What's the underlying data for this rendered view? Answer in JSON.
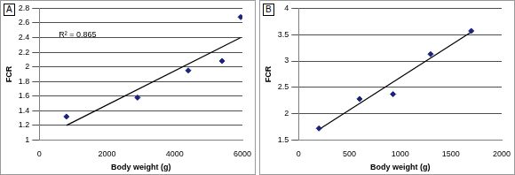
{
  "chart_data": [
    {
      "type": "scatter",
      "title": "A",
      "xlabel": "Body weight (g)",
      "ylabel": "FCR",
      "annotation": "R² = 0.865",
      "xlim": [
        0,
        6000
      ],
      "xticks": [
        0,
        2000,
        4000,
        6000
      ],
      "ylim": [
        1,
        2.8
      ],
      "yticks": [
        1,
        1.2,
        1.4,
        1.6,
        1.8,
        2,
        2.2,
        2.4,
        2.6,
        2.8
      ],
      "grid": true,
      "series": [
        {
          "type": "scatter",
          "marker": "diamond",
          "color": "#1a237e",
          "x": [
            800,
            2900,
            4400,
            5400,
            5950
          ],
          "values": [
            1.32,
            1.58,
            1.95,
            2.08,
            2.68
          ]
        },
        {
          "type": "line",
          "line_style": "solid",
          "color": "#000000",
          "x": [
            800,
            5950
          ],
          "values": [
            1.2,
            2.4
          ]
        }
      ]
    },
    {
      "type": "scatter",
      "title": "B",
      "xlabel": "Body weight (g)",
      "ylabel": "FCR",
      "xlim": [
        0,
        2000
      ],
      "xticks": [
        0,
        500,
        1000,
        1500,
        2000
      ],
      "ylim": [
        1.5,
        4
      ],
      "yticks": [
        1.5,
        2,
        2.5,
        3,
        3.5,
        4
      ],
      "grid": true,
      "series": [
        {
          "type": "scatter",
          "marker": "diamond",
          "color": "#1a237e",
          "x": [
            200,
            600,
            930,
            1300,
            1700
          ],
          "values": [
            1.72,
            2.28,
            2.37,
            3.13,
            3.57
          ]
        },
        {
          "type": "line",
          "line_style": "solid",
          "color": "#000000",
          "x": [
            200,
            1700
          ],
          "values": [
            1.7,
            3.55
          ]
        }
      ]
    }
  ]
}
